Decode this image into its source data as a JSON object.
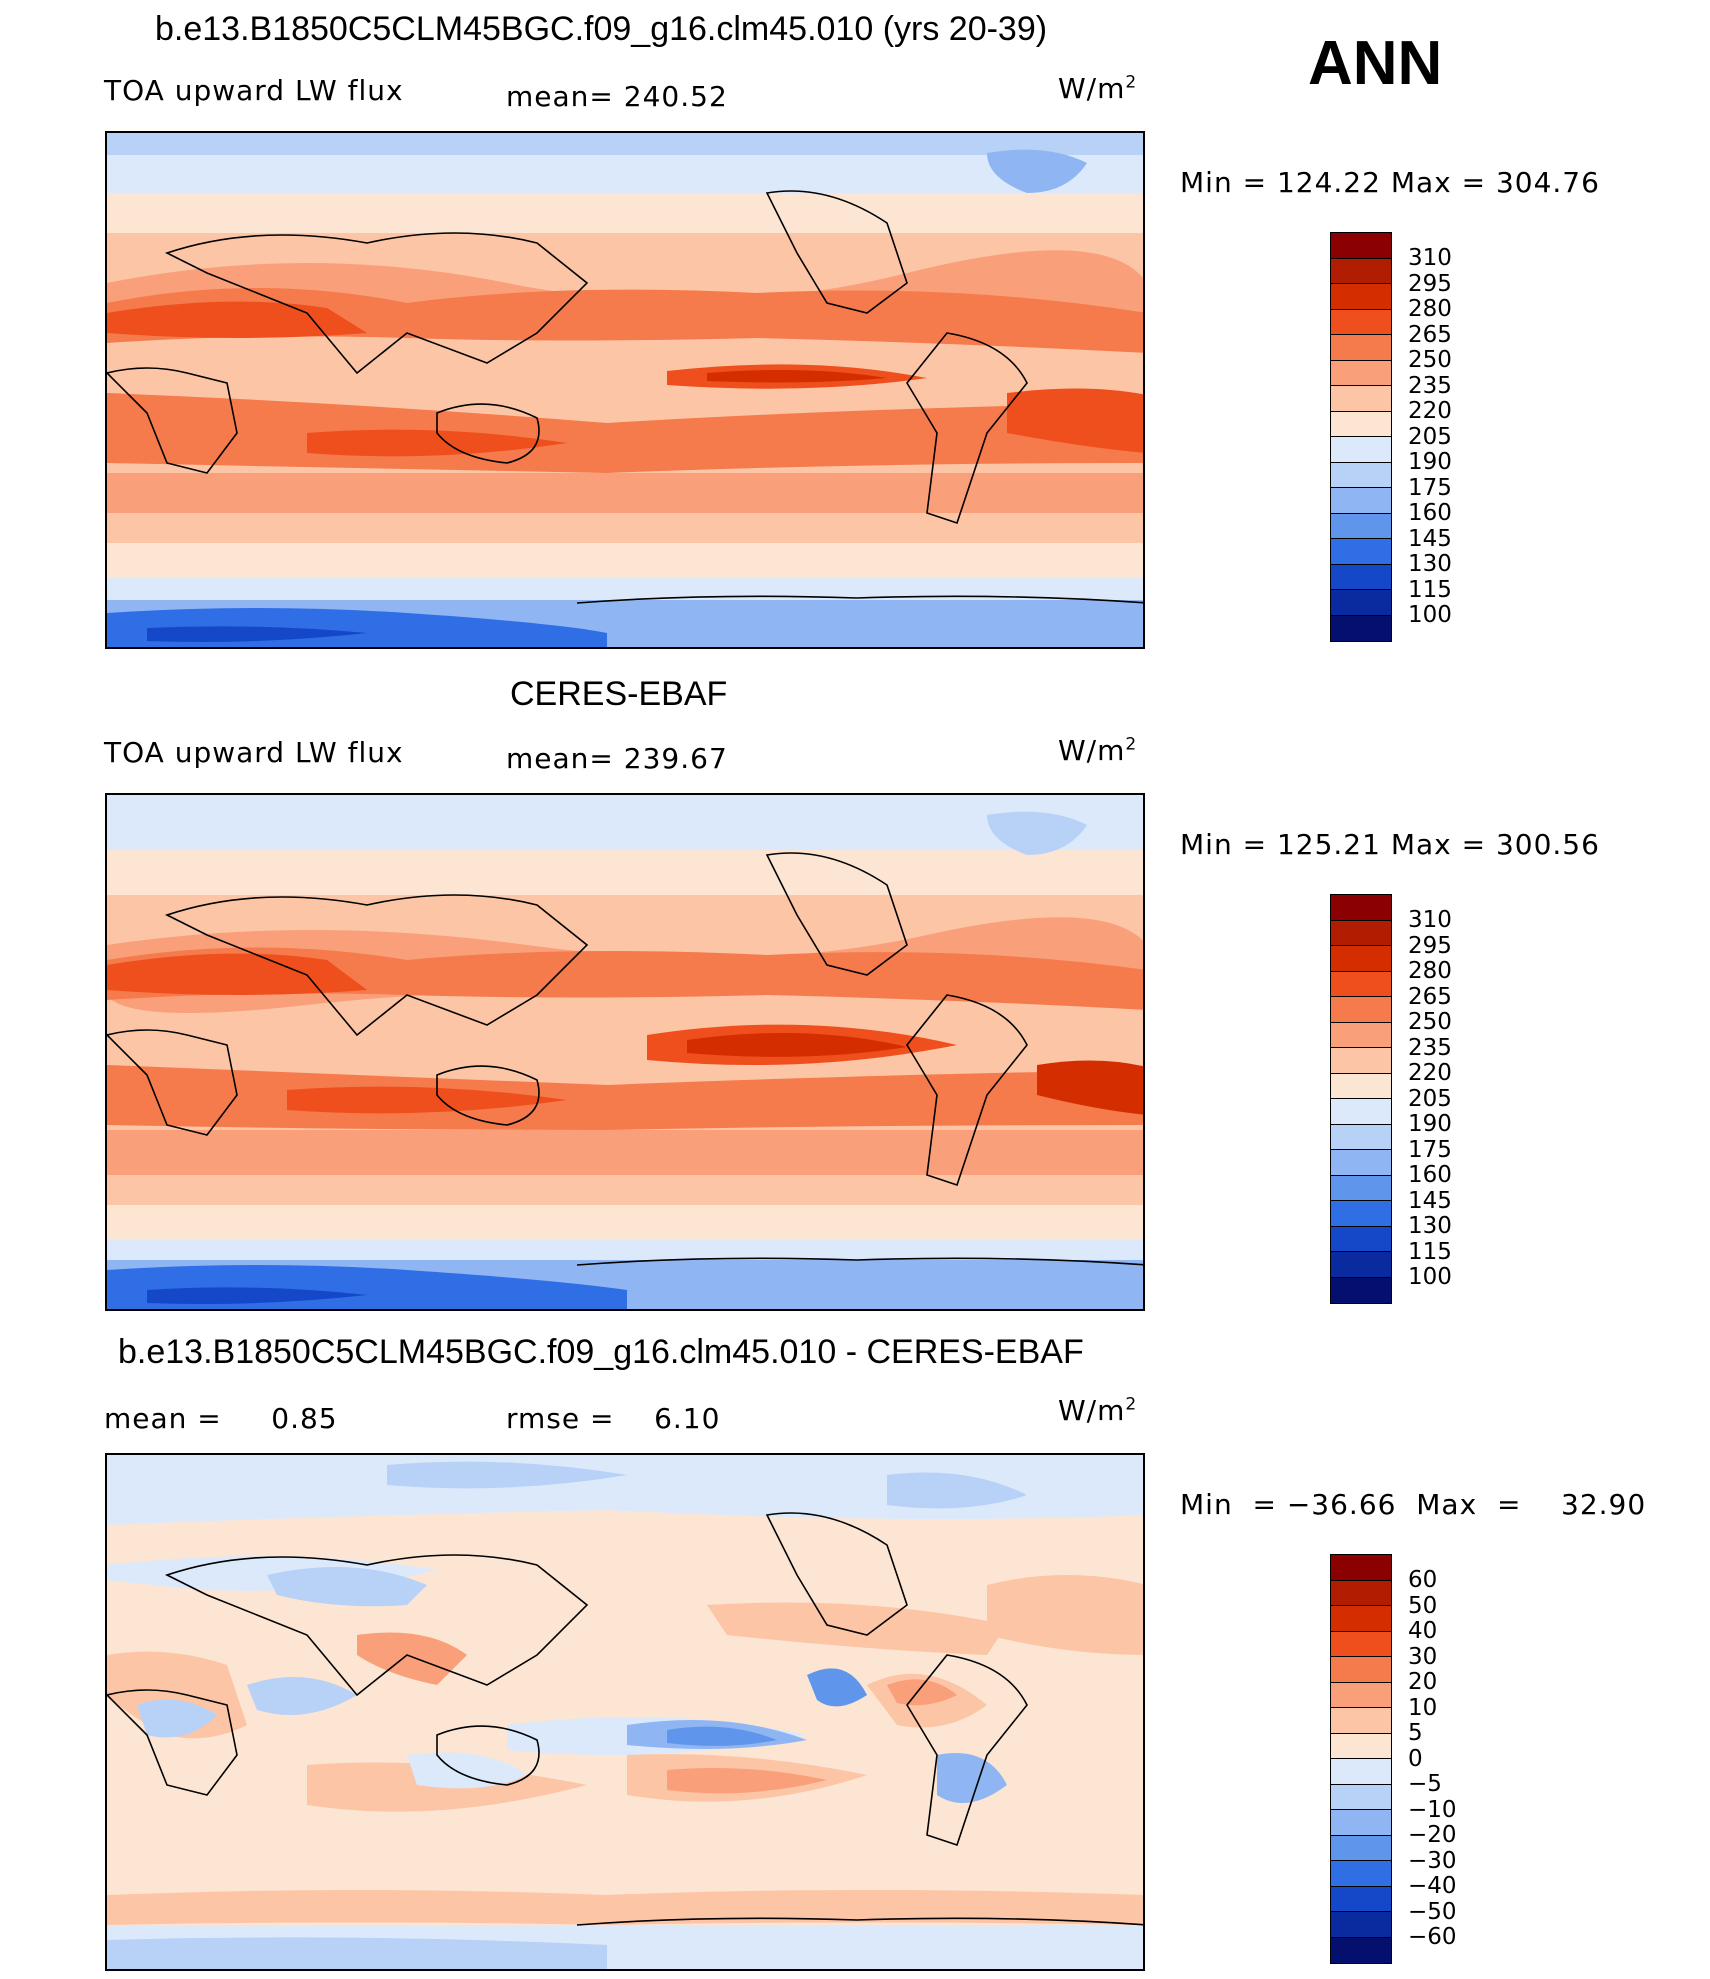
{
  "header": {
    "season": "ANN"
  },
  "panels": [
    {
      "title": "b.e13.B1850C5CLM45BGC.f09_g16.clm45.010 (yrs 20-39)",
      "left_label": "TOA upward LW flux",
      "stat_label": "mean=",
      "stat_value": "240.52",
      "units": "W/m",
      "units_exp": "2",
      "minmax": "Min  =  124.22  Max  =  304.76",
      "colorbar": {
        "labels": [
          "310",
          "295",
          "280",
          "265",
          "250",
          "235",
          "220",
          "205",
          "190",
          "175",
          "160",
          "145",
          "130",
          "115",
          "100"
        ],
        "colors": [
          "#8b0000",
          "#b01d00",
          "#d42e00",
          "#ee4f1c",
          "#f57a4c",
          "#f9a07a",
          "#fcc5a6",
          "#fde5d3",
          "#dbe9fb",
          "#b7d1f7",
          "#8fb6f2",
          "#5f96ec",
          "#2f6ee5",
          "#1448c9",
          "#0a2aa0",
          "#050f6e"
        ]
      }
    },
    {
      "title": "CERES-EBAF",
      "left_label": "TOA upward LW flux",
      "stat_label": "mean=",
      "stat_value": "239.67",
      "units": "W/m",
      "units_exp": "2",
      "minmax": "Min  =  125.21  Max  =  300.56",
      "colorbar": {
        "labels": [
          "310",
          "295",
          "280",
          "265",
          "250",
          "235",
          "220",
          "205",
          "190",
          "175",
          "160",
          "145",
          "130",
          "115",
          "100"
        ],
        "colors": [
          "#8b0000",
          "#b01d00",
          "#d42e00",
          "#ee4f1c",
          "#f57a4c",
          "#f9a07a",
          "#fcc5a6",
          "#fde5d3",
          "#dbe9fb",
          "#b7d1f7",
          "#8fb6f2",
          "#5f96ec",
          "#2f6ee5",
          "#1448c9",
          "#0a2aa0",
          "#050f6e"
        ]
      }
    },
    {
      "title": "b.e13.B1850C5CLM45BGC.f09_g16.clm45.010 - CERES-EBAF",
      "left_label": "mean =     0.85",
      "stat_label": "rmse =",
      "stat_value": "6.10",
      "units": "W/m",
      "units_exp": "2",
      "minmax": "Min  = −36.66  Max  =    32.90",
      "colorbar": {
        "labels": [
          "60",
          "50",
          "40",
          "30",
          "20",
          "10",
          "5",
          "0",
          "−5",
          "−10",
          "−20",
          "−30",
          "−40",
          "−50",
          "−60"
        ],
        "colors": [
          "#8b0000",
          "#b01d00",
          "#d42e00",
          "#ee4f1c",
          "#f57a4c",
          "#f9a07a",
          "#fcc5a6",
          "#fde5d3",
          "#dbe9fb",
          "#b7d1f7",
          "#8fb6f2",
          "#5f96ec",
          "#2f6ee5",
          "#1448c9",
          "#0a2aa0",
          "#050f6e"
        ]
      }
    }
  ]
}
